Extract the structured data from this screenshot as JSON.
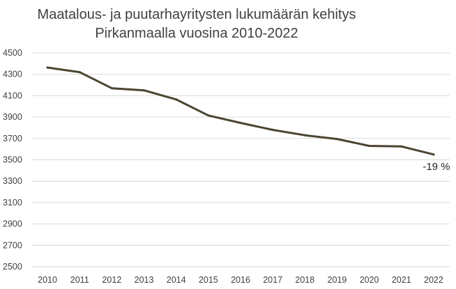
{
  "chart_data": {
    "type": "line",
    "title_lines": [
      "Maatalous- ja puutarhayritysten lukumäärän kehitys",
      "Pirkanmaalla vuosina 2010-2022"
    ],
    "xlabel": "",
    "ylabel": "",
    "categories": [
      "2010",
      "2011",
      "2012",
      "2013",
      "2014",
      "2015",
      "2016",
      "2017",
      "2018",
      "2019",
      "2020",
      "2021",
      "2022"
    ],
    "series": [
      {
        "values": [
          4363,
          4320,
          4170,
          4150,
          4065,
          3915,
          3845,
          3780,
          3730,
          3695,
          3630,
          3625,
          3550
        ],
        "color": "#4a4530"
      }
    ],
    "ylim": [
      2500,
      4500
    ],
    "yticks": [
      2500,
      2700,
      2900,
      3100,
      3300,
      3500,
      3700,
      3900,
      4100,
      4300,
      4500
    ],
    "grid": true,
    "legend": "none",
    "annotation": {
      "text": "-19 %",
      "category": "2022"
    }
  }
}
